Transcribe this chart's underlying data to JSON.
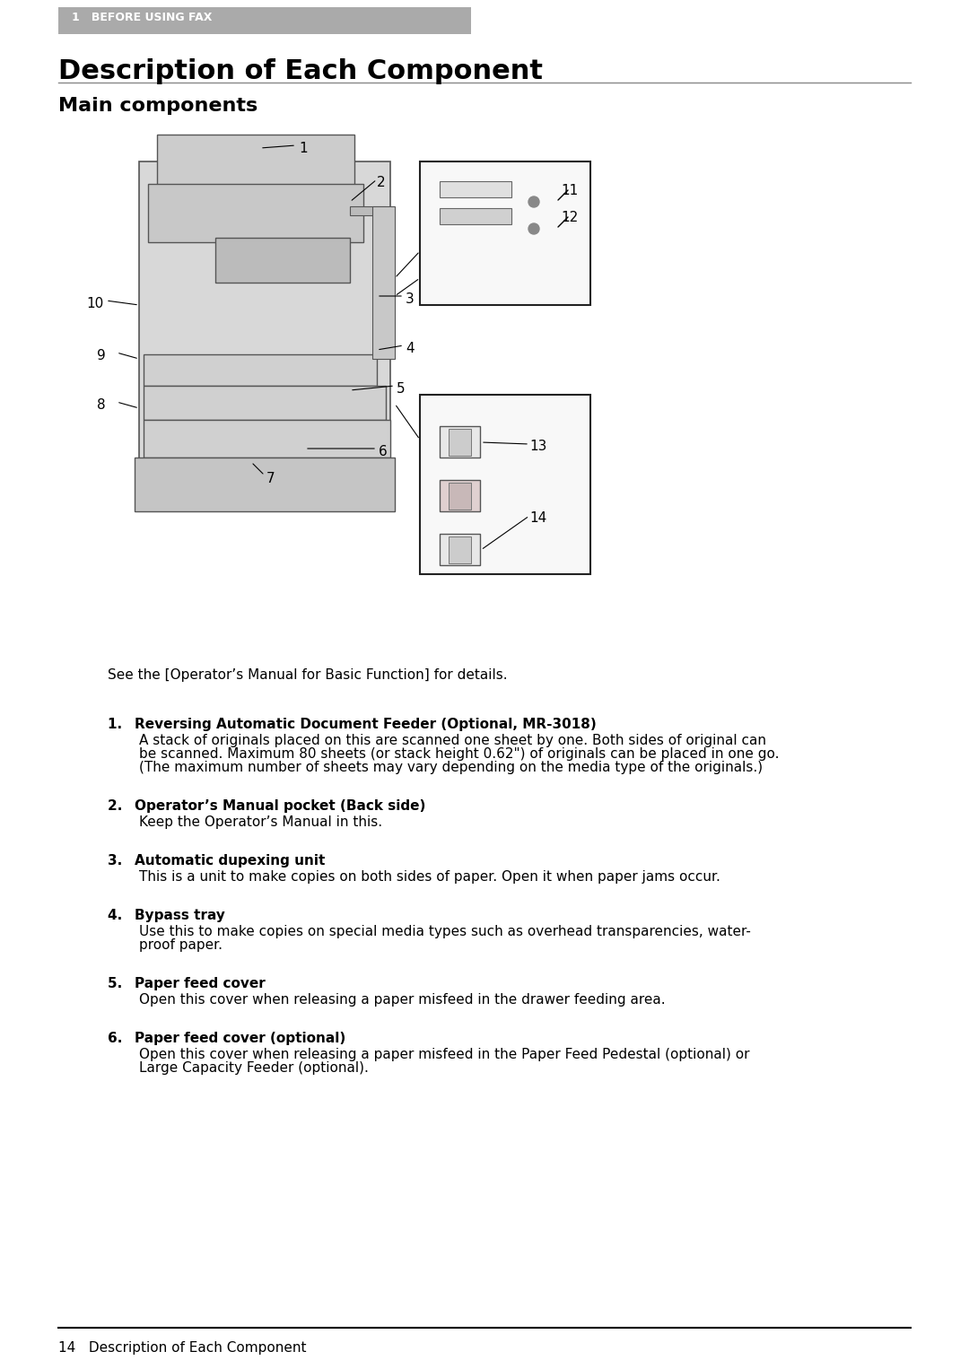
{
  "bg_color": "#ffffff",
  "header_bg": "#aaaaaa",
  "header_text": "1   BEFORE USING FAX",
  "header_text_color": "#ffffff",
  "title": "Description of Each Component",
  "subtitle": "Main components",
  "footer_line_color": "#000000",
  "footer_text": "14   Description of Each Component",
  "intro_text": "See the [Operator’s Manual for Basic Function] for details.",
  "items": [
    {
      "num": "1.",
      "bold": "Reversing Automatic Document Feeder (Optional, MR-3018)",
      "body": "A stack of originals placed on this are scanned one sheet by one. Both sides of original can\nbe scanned. Maximum 80 sheets (or stack height 0.62\") of originals can be placed in one go.\n(The maximum number of sheets may vary depending on the media type of the originals.)"
    },
    {
      "num": "2.",
      "bold": "Operator’s Manual pocket (Back side)",
      "body": "Keep the Operator’s Manual in this."
    },
    {
      "num": "3.",
      "bold": "Automatic dupexing unit",
      "body": "This is a unit to make copies on both sides of paper. Open it when paper jams occur."
    },
    {
      "num": "4.",
      "bold": "Bypass tray",
      "body": "Use this to make copies on special media types such as overhead transparencies, water-\nproof paper."
    },
    {
      "num": "5.",
      "bold": "Paper feed cover",
      "body": "Open this cover when releasing a paper misfeed in the drawer feeding area."
    },
    {
      "num": "6.",
      "bold": "Paper feed cover (optional)",
      "body": "Open this cover when releasing a paper misfeed in the Paper Feed Pedestal (optional) or\nLarge Capacity Feeder (optional)."
    }
  ]
}
